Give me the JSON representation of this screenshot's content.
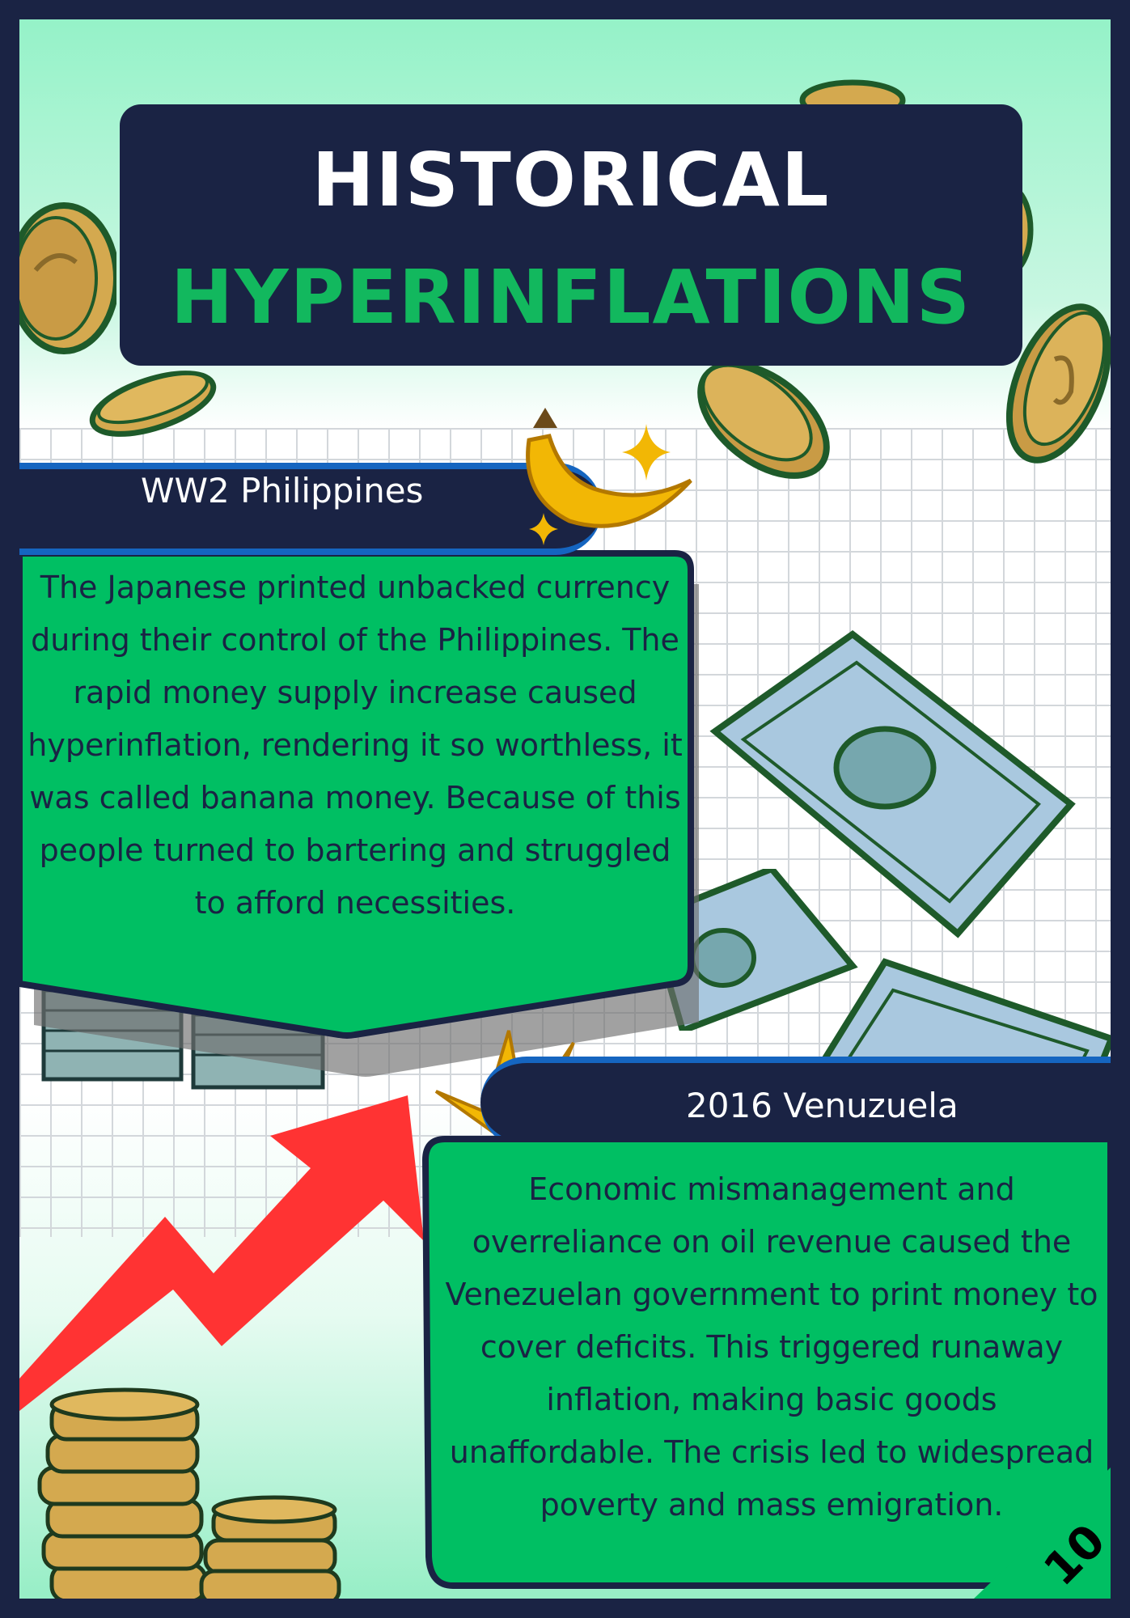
{
  "title": {
    "line1": "HISTORICAL",
    "line2": "HYPERINFLATIONS"
  },
  "colors": {
    "navy": "#1a2344",
    "green": "#00bf63",
    "title_green": "#12b85e",
    "blue_stripe": "#1565c0",
    "arrow_red": "#ff3333"
  },
  "sections": [
    {
      "heading": "WW2 Philippines",
      "body": "The Japanese printed unbacked currency during their control of the Philippines. The rapid money supply increase caused hyperinflation, rendering it so worthless, it was called banana money. Because of this people turned to bartering and struggled to afford necessities."
    },
    {
      "heading": "2016 Venuzuela",
      "body": "Economic mismanagement and overreliance on oil revenue caused the Venezuelan government to print money to cover deficits. This triggered runaway inflation, making basic goods unaffordable. The crisis led to widespread poverty and mass emigration."
    }
  ],
  "page_number": "10",
  "icons": [
    "coin-icon",
    "banana-icon",
    "sparkle-icon",
    "banknote-icon",
    "paper-crane-icon",
    "rising-arrow-icon",
    "coin-stack-icon",
    "cash-stack-icon"
  ]
}
